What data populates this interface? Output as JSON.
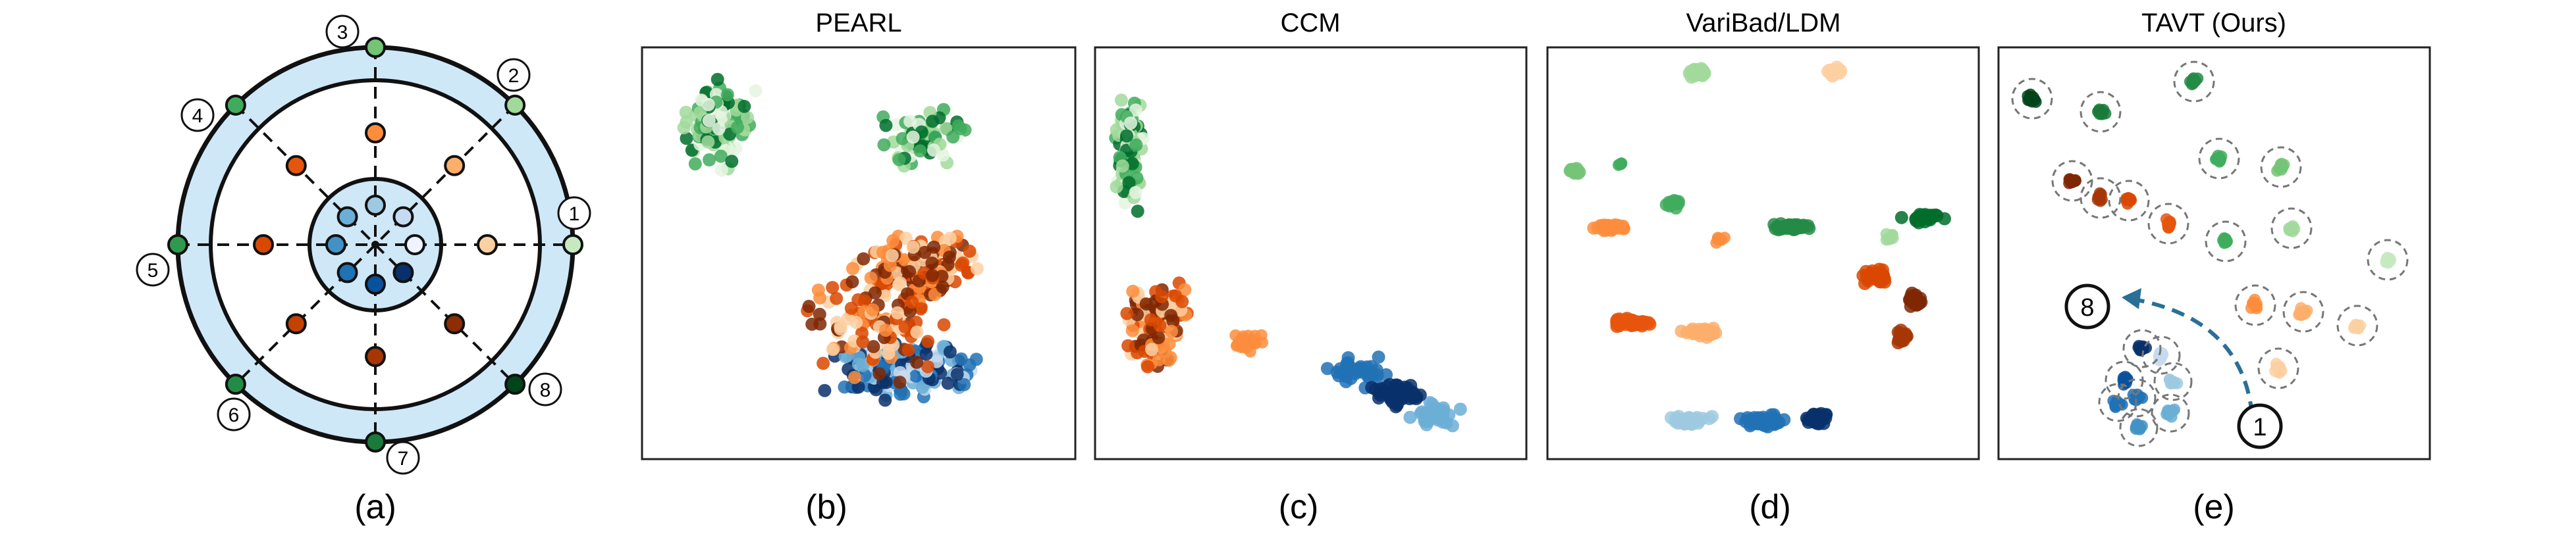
{
  "figure": {
    "diagram_panel": {
      "label": "(a)",
      "outer_ring_numbers": [
        "1",
        "2",
        "3",
        "4",
        "5",
        "6",
        "7",
        "8"
      ]
    },
    "panels": [
      {
        "id": "b",
        "title": "PEARL",
        "label": "(b)"
      },
      {
        "id": "c",
        "title": "CCM",
        "label": "(c)"
      },
      {
        "id": "d",
        "title": "VariBad/LDM",
        "label": "(d)"
      },
      {
        "id": "e",
        "title": "TAVT (Ours)",
        "label": "(e)"
      }
    ],
    "annotation_e": {
      "start": "1",
      "end": "8"
    }
  },
  "colors": {
    "ring_fill": "#cfe8f8",
    "greens": [
      "#e5f5e0",
      "#a1d99b",
      "#41ab5d",
      "#006d2c"
    ],
    "oranges": [
      "#fdd0a2",
      "#fd8d3c",
      "#d94801",
      "#7f2704"
    ],
    "blues": [
      "#c6dbef",
      "#6baed6",
      "#2171b5",
      "#08306b"
    ],
    "arrow": "#2a6f97"
  }
}
